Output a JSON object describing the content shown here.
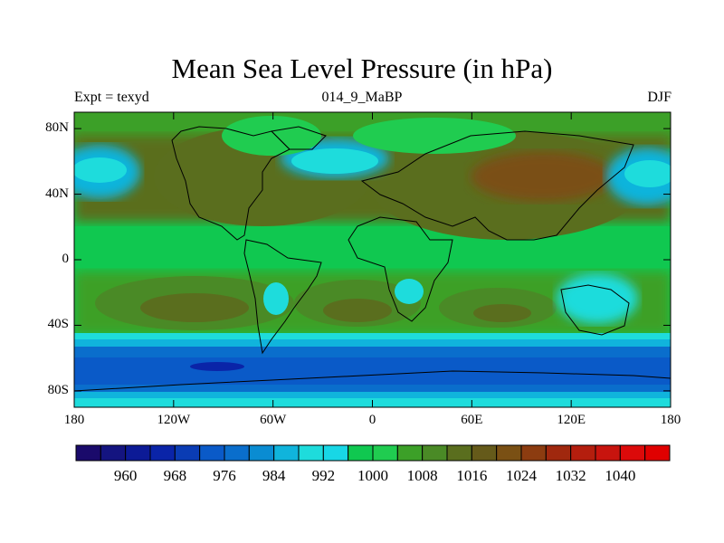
{
  "title": "Mean Sea Level Pressure (in hPa)",
  "subtitle_left": "Expt = texyd",
  "subtitle_center": "014_9_MaBP",
  "subtitle_right": "DJF",
  "map": {
    "projection": "cylindrical-equidistant",
    "lon_range": [
      -180,
      180
    ],
    "lat_range": [
      -90,
      90
    ],
    "y_ticks": [
      {
        "lat": 80,
        "label": "80N"
      },
      {
        "lat": 40,
        "label": "40N"
      },
      {
        "lat": 0,
        "label": "0"
      },
      {
        "lat": -40,
        "label": "40S"
      },
      {
        "lat": -80,
        "label": "80S"
      }
    ],
    "x_ticks": [
      {
        "lon": -180,
        "label": "180"
      },
      {
        "lon": -120,
        "label": "120W"
      },
      {
        "lon": -60,
        "label": "60W"
      },
      {
        "lon": 0,
        "label": "0"
      },
      {
        "lon": 60,
        "label": "60E"
      },
      {
        "lon": 120,
        "label": "120E"
      },
      {
        "lon": 180,
        "label": "180"
      }
    ],
    "contour_levels": [
      956,
      960,
      964,
      968,
      972,
      976,
      980,
      984,
      988,
      992,
      996,
      1000,
      1004,
      1008,
      1012,
      1016,
      1020,
      1024,
      1028,
      1032,
      1036,
      1040,
      1044
    ]
  },
  "colorbar": {
    "colors": [
      "#1a0a6b",
      "#141480",
      "#0c1a96",
      "#0a24a8",
      "#0a3cb4",
      "#0a5ac8",
      "#0a6ecc",
      "#0a8cd2",
      "#10b4dc",
      "#1edcdc",
      "#18d7e6",
      "#10c850",
      "#20cc50",
      "#3ca028",
      "#4a8a26",
      "#5a6e1e",
      "#655a1a",
      "#7a5014",
      "#8c3c10",
      "#a0280e",
      "#b41e0e",
      "#c8140e",
      "#dc0a0a",
      "#e00000"
    ],
    "labels": [
      {
        "value": 960,
        "text": "960"
      },
      {
        "value": 968,
        "text": "968"
      },
      {
        "value": 976,
        "text": "976"
      },
      {
        "value": 984,
        "text": "984"
      },
      {
        "value": 992,
        "text": "992"
      },
      {
        "value": 1000,
        "text": "1000"
      },
      {
        "value": 1008,
        "text": "1008"
      },
      {
        "value": 1016,
        "text": "1016"
      },
      {
        "value": 1024,
        "text": "1024"
      },
      {
        "value": 1032,
        "text": "1032"
      },
      {
        "value": 1040,
        "text": "1040"
      }
    ]
  }
}
